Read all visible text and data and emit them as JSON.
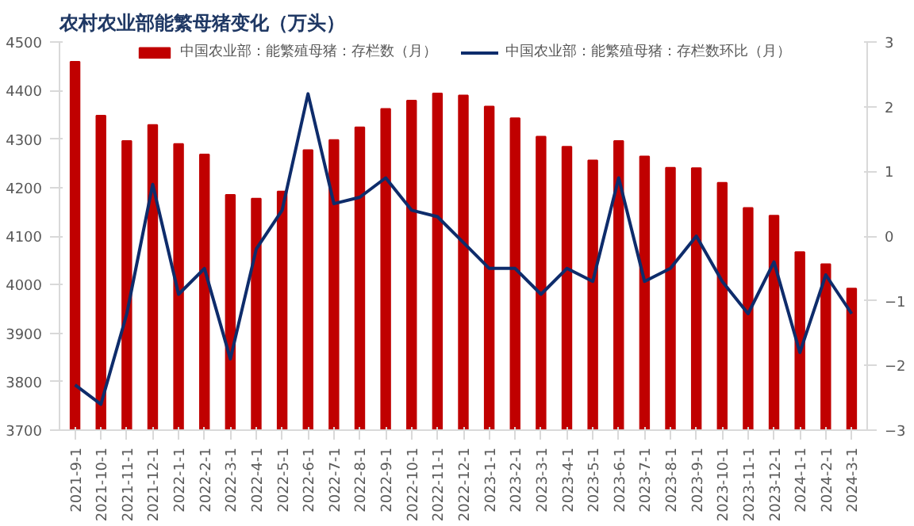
{
  "chart_data": {
    "type": "bar",
    "title": "农村农业部能繁母猪变化（万头）",
    "categories": [
      "2021-9-1",
      "2021-10-1",
      "2021-11-1",
      "2021-12-1",
      "2022-1-1",
      "2022-2-1",
      "2022-3-1",
      "2022-4-1",
      "2022-5-1",
      "2022-6-1",
      "2022-7-1",
      "2022-8-1",
      "2022-9-1",
      "2022-10-1",
      "2022-11-1",
      "2022-12-1",
      "2023-1-1",
      "2023-2-1",
      "2023-3-1",
      "2023-4-1",
      "2023-5-1",
      "2023-6-1",
      "2023-7-1",
      "2023-8-1",
      "2023-9-1",
      "2023-10-1",
      "2023-11-1",
      "2023-12-1",
      "2024-1-1",
      "2024-2-1",
      "2024-3-1"
    ],
    "series": [
      {
        "name": "中国农业部：能繁殖母猪：存栏数（月）",
        "color": "#c00000",
        "values": [
          4459,
          4348,
          4296,
          4329,
          4290,
          4268,
          4185,
          4177,
          4192,
          4277,
          4298,
          4324,
          4362,
          4379,
          4394,
          4390,
          4367,
          4343,
          4305,
          4284,
          4256,
          4296,
          4264,
          4241,
          4240,
          4210,
          4158,
          4142,
          4067,
          4042,
          3992
        ]
      },
      {
        "name": "中国农业部：能繁殖母猪：存栏数环比（月）",
        "type": "line",
        "axis": "y2",
        "color": "#0e2c6b",
        "values": [
          -2.3,
          -2.6,
          -1.2,
          0.8,
          -0.9,
          -0.5,
          -1.9,
          -0.2,
          0.4,
          2.2,
          0.5,
          0.6,
          0.9,
          0.4,
          0.3,
          -0.1,
          -0.5,
          -0.5,
          -0.9,
          -0.5,
          -0.7,
          0.9,
          -0.7,
          -0.5,
          0.0,
          -0.7,
          -1.2,
          -0.4,
          -1.8,
          -0.6,
          -1.2
        ]
      }
    ],
    "ylim": [
      3700,
      4500
    ],
    "yticks": [
      3700,
      3800,
      3900,
      4000,
      4100,
      4200,
      4300,
      4400,
      4500
    ],
    "y2lim": [
      -3,
      3
    ],
    "y2ticks": [
      -3,
      -2,
      -1,
      0,
      1,
      2,
      3
    ],
    "legend": "top",
    "grid": false,
    "line_style": "solid"
  }
}
